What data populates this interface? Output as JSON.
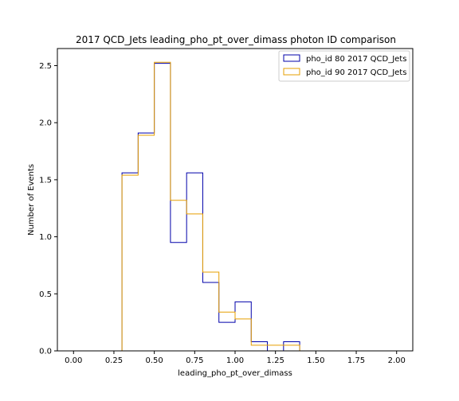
{
  "chart_data": {
    "type": "histogram-step",
    "title": "2017 QCD_Jets leading_pho_pt_over_dimass photon ID comparison",
    "xlabel": "leading_pho_pt_over_dimass",
    "ylabel": "Number of Events",
    "xlim": [
      -0.1,
      2.1
    ],
    "ylim": [
      0,
      2.65
    ],
    "xticks": [
      "0.00",
      "0.25",
      "0.50",
      "0.75",
      "1.00",
      "1.25",
      "1.50",
      "1.75",
      "2.00"
    ],
    "xtick_values": [
      0,
      0.25,
      0.5,
      0.75,
      1.0,
      1.25,
      1.5,
      1.75,
      2.0
    ],
    "yticks": [
      "0.0",
      "0.5",
      "1.0",
      "1.5",
      "2.0",
      "2.5"
    ],
    "ytick_values": [
      0,
      0.5,
      1.0,
      1.5,
      2.0,
      2.5
    ],
    "bin_edges": [
      0.0,
      0.1,
      0.2,
      0.3,
      0.4,
      0.5,
      0.6,
      0.7,
      0.8,
      0.9,
      1.0,
      1.1,
      1.2,
      1.3,
      1.4,
      1.5,
      1.6,
      1.7,
      1.8,
      1.9,
      2.0
    ],
    "legend_position": "top-right",
    "series": [
      {
        "name": "pho_id 80 2017 QCD_Jets",
        "color": "#0000aa",
        "values": [
          0,
          0,
          0,
          1.56,
          1.91,
          2.52,
          0.95,
          1.56,
          0.6,
          0.25,
          0.43,
          0.08,
          0.0,
          0.08,
          0,
          0,
          0,
          0,
          0,
          0
        ]
      },
      {
        "name": "pho_id 90 2017 QCD_Jets",
        "color": "#e69f00",
        "values": [
          0,
          0,
          0,
          1.54,
          1.89,
          2.53,
          1.32,
          1.2,
          0.69,
          0.34,
          0.28,
          0.05,
          0.05,
          0.05,
          0,
          0,
          0,
          0,
          0,
          0
        ]
      }
    ]
  }
}
